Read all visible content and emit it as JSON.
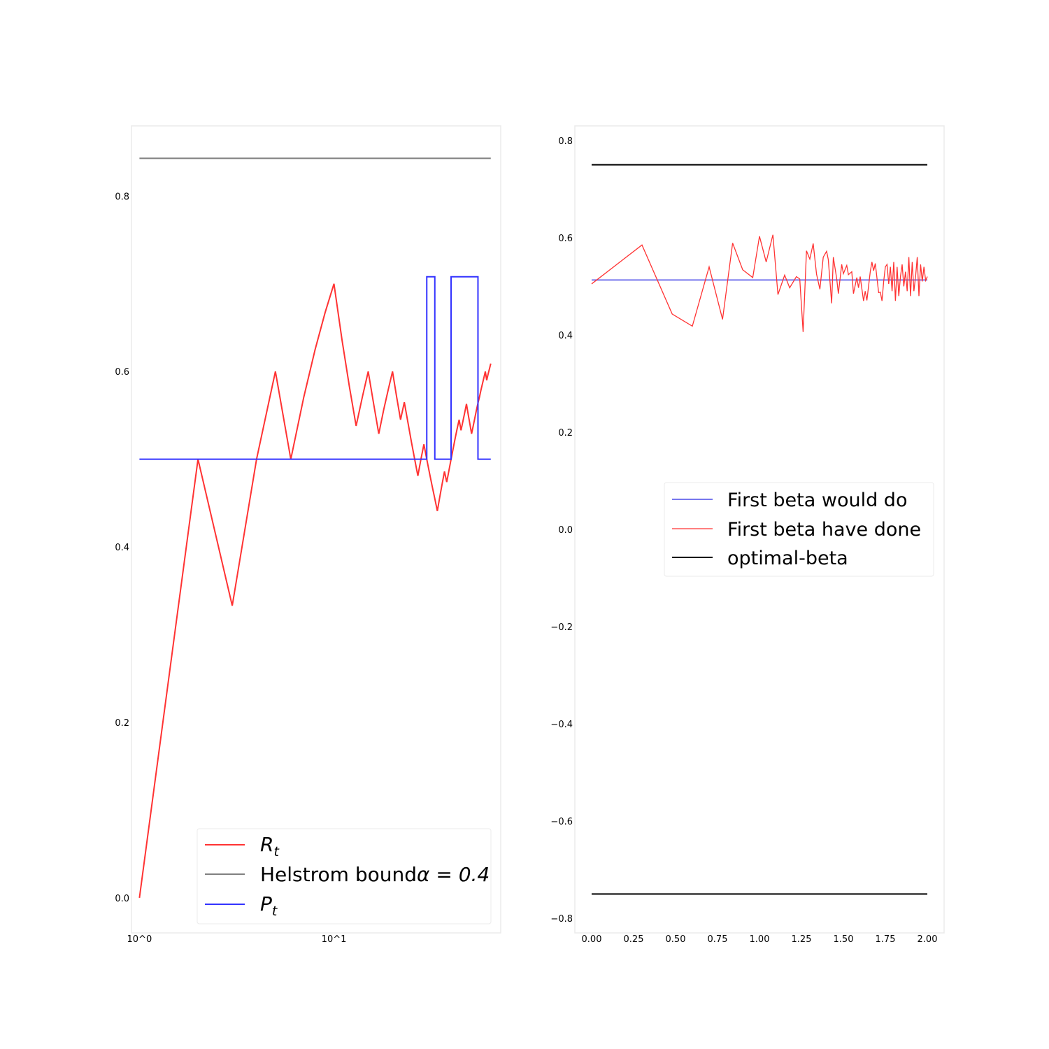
{
  "chart_data": [
    {
      "type": "line",
      "x_scale": "log",
      "xlim": [
        0.91,
        72
      ],
      "ylim": [
        -0.04,
        0.88
      ],
      "x_tick_labels": [
        "10^0",
        "10^1"
      ],
      "x_tick_values": [
        1,
        10
      ],
      "y_ticks": [
        0.0,
        0.2,
        0.4,
        0.6,
        0.8
      ],
      "y_tick_labels": [
        "0.0",
        "0.2",
        "0.4",
        "0.6",
        "0.8"
      ],
      "grid": false,
      "legend_position": "lower-right",
      "series": [
        {
          "name": "R",
          "name_subscript": "t",
          "color": "#ff3333",
          "x": [
            1,
            2,
            3,
            4,
            5,
            6,
            7,
            8,
            9,
            10,
            11,
            12,
            13,
            14,
            15,
            16,
            17,
            18,
            19,
            20,
            21,
            22,
            23,
            24,
            25,
            26,
            27,
            28,
            29,
            30,
            31,
            32,
            33,
            34,
            35,
            36,
            37,
            38,
            39,
            40,
            41,
            42,
            43,
            44,
            45,
            46,
            47,
            48,
            49,
            50,
            51,
            52,
            53,
            54,
            55,
            56,
            57,
            58,
            59,
            60,
            61,
            62,
            63,
            64
          ],
          "y": [
            0.0,
            0.5,
            0.333,
            0.5,
            0.6,
            0.5,
            0.571,
            0.625,
            0.667,
            0.7,
            0.636,
            0.583,
            0.538,
            0.571,
            0.6,
            0.563,
            0.529,
            0.556,
            0.579,
            0.6,
            0.571,
            0.545,
            0.565,
            0.542,
            0.52,
            0.5,
            0.481,
            0.5,
            0.517,
            0.5,
            0.484,
            0.469,
            0.455,
            0.441,
            0.457,
            0.472,
            0.486,
            0.474,
            0.487,
            0.5,
            0.512,
            0.524,
            0.535,
            0.545,
            0.533,
            0.543,
            0.553,
            0.563,
            0.551,
            0.54,
            0.529,
            0.538,
            0.547,
            0.556,
            0.564,
            0.571,
            0.579,
            0.586,
            0.593,
            0.6,
            0.59,
            0.597,
            0.603,
            0.609
          ]
        },
        {
          "name": "Helstrom bound",
          "name_math": "α = 0.4",
          "color": "#808080",
          "x": [
            1,
            64
          ],
          "y": [
            0.843,
            0.843
          ]
        },
        {
          "name": "P",
          "name_subscript": "t",
          "color": "#3333ff",
          "x": [
            1,
            30,
            30,
            33,
            33,
            40,
            40,
            55,
            55,
            64
          ],
          "y": [
            0.5,
            0.5,
            0.708,
            0.708,
            0.5,
            0.5,
            0.708,
            0.708,
            0.5,
            0.5
          ]
        }
      ]
    },
    {
      "type": "line",
      "xlim": [
        -0.1,
        2.1
      ],
      "ylim": [
        -0.83,
        0.83
      ],
      "x_ticks": [
        0.0,
        0.25,
        0.5,
        0.75,
        1.0,
        1.25,
        1.5,
        1.75,
        2.0
      ],
      "x_tick_labels": [
        "0.00",
        "0.25",
        "0.50",
        "0.75",
        "1.00",
        "1.25",
        "1.50",
        "1.75",
        "2.00"
      ],
      "y_ticks": [
        -0.8,
        -0.6,
        -0.4,
        -0.2,
        0.0,
        0.2,
        0.4,
        0.6,
        0.8
      ],
      "y_tick_labels": [
        "−0.8",
        "−0.6",
        "−0.4",
        "−0.2",
        "0.0",
        "0.2",
        "0.4",
        "0.6",
        "0.8"
      ],
      "grid": false,
      "legend_position": "center-right",
      "series": [
        {
          "name": "First beta would do",
          "color": "#7777ee",
          "x": [
            0.0,
            2.0
          ],
          "y": [
            0.513,
            0.513
          ]
        },
        {
          "name": "First beta have done",
          "color": "#ff3333",
          "x": [
            0.0,
            0.3,
            0.48,
            0.6,
            0.7,
            0.78,
            0.84,
            0.9,
            0.96,
            1.0,
            1.04,
            1.08,
            1.11,
            1.15,
            1.18,
            1.22,
            1.24,
            1.26,
            1.28,
            1.3,
            1.32,
            1.34,
            1.36,
            1.38,
            1.4,
            1.41,
            1.43,
            1.44,
            1.46,
            1.47,
            1.49,
            1.5,
            1.52,
            1.53,
            1.55,
            1.56,
            1.58,
            1.59,
            1.6,
            1.62,
            1.63,
            1.64,
            1.66,
            1.67,
            1.68,
            1.69,
            1.71,
            1.72,
            1.73,
            1.74,
            1.75,
            1.76,
            1.77,
            1.78,
            1.79,
            1.8,
            1.81,
            1.82,
            1.83,
            1.84,
            1.85,
            1.86,
            1.87,
            1.88,
            1.89,
            1.9,
            1.91,
            1.92,
            1.93,
            1.94,
            1.95,
            1.96,
            1.97,
            1.98,
            1.99,
            2.0
          ],
          "y": [
            0.505,
            0.585,
            0.443,
            0.418,
            0.54,
            0.432,
            0.589,
            0.534,
            0.518,
            0.603,
            0.55,
            0.606,
            0.483,
            0.523,
            0.497,
            0.52,
            0.515,
            0.406,
            0.573,
            0.556,
            0.588,
            0.525,
            0.494,
            0.56,
            0.572,
            0.555,
            0.465,
            0.56,
            0.516,
            0.485,
            0.545,
            0.526,
            0.543,
            0.524,
            0.53,
            0.485,
            0.518,
            0.497,
            0.52,
            0.47,
            0.49,
            0.471,
            0.53,
            0.55,
            0.532,
            0.547,
            0.487,
            0.488,
            0.47,
            0.51,
            0.54,
            0.545,
            0.505,
            0.54,
            0.49,
            0.55,
            0.47,
            0.54,
            0.48,
            0.52,
            0.545,
            0.5,
            0.53,
            0.49,
            0.56,
            0.48,
            0.55,
            0.49,
            0.52,
            0.56,
            0.48,
            0.545,
            0.51,
            0.54,
            0.512,
            0.52
          ]
        },
        {
          "name": "optimal-beta",
          "color": "#000000",
          "x": [
            0.0,
            2.0
          ],
          "y": [
            0.75,
            0.75
          ]
        },
        {
          "name": "",
          "color": "#000000",
          "x": [
            0.0,
            2.0
          ],
          "y": [
            -0.75,
            -0.75
          ]
        }
      ]
    }
  ]
}
